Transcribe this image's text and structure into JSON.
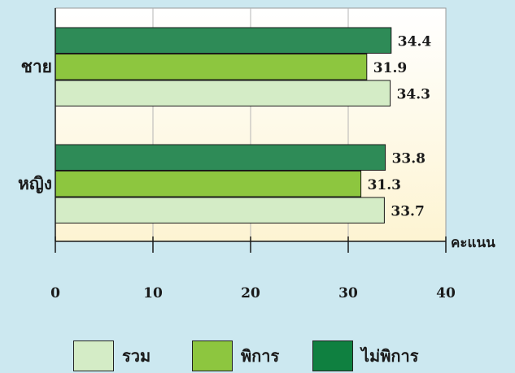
{
  "chart_data": {
    "type": "bar",
    "orientation": "horizontal",
    "categories": [
      "ชาย",
      "หญิง"
    ],
    "series": [
      {
        "name": "ไม่พิการ",
        "values": [
          34.4,
          33.8
        ],
        "color": "#2e8b57"
      },
      {
        "name": "พิการ",
        "values": [
          31.9,
          31.3
        ],
        "color": "#8dc63f"
      },
      {
        "name": "รวม",
        "values": [
          34.3,
          33.7
        ],
        "color": "#d4ecc6"
      }
    ],
    "xlabel": "คะแนน",
    "xlim": [
      0,
      40
    ],
    "xticks": [
      "0",
      "10",
      "20",
      "30",
      "40"
    ],
    "grid": true,
    "legend_position": "bottom",
    "plot_background": [
      "#ffffff",
      "#fdf4d2"
    ]
  },
  "legend": [
    {
      "label": "รวม",
      "color": "#d4ecc6"
    },
    {
      "label": "พิการ",
      "color": "#8dc63f"
    },
    {
      "label": "ไม่พิการ",
      "color": "#0f8040"
    }
  ]
}
